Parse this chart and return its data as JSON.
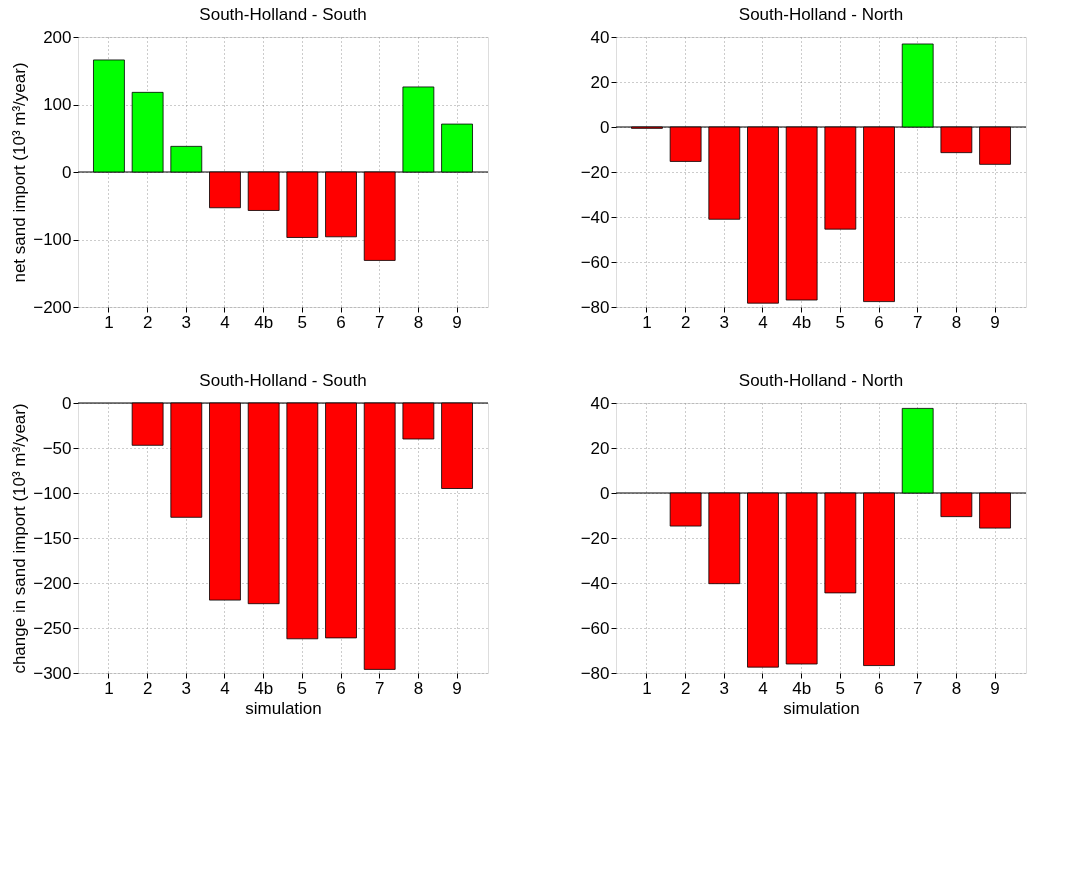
{
  "chart_data": [
    {
      "type": "bar",
      "title": "South-Holland - South",
      "ylabel": "net sand import (10³ m³/year)",
      "categories": [
        "1",
        "2",
        "3",
        "4",
        "4b",
        "5",
        "6",
        "7",
        "8",
        "9"
      ],
      "values": [
        166,
        118,
        38,
        -53,
        -57,
        -97,
        -96,
        -131,
        126,
        71
      ],
      "colors": [
        "#00ff00",
        "#00ff00",
        "#00ff00",
        "#ff0000",
        "#ff0000",
        "#ff0000",
        "#ff0000",
        "#ff0000",
        "#00ff00",
        "#00ff00"
      ],
      "ylim": [
        -200,
        200
      ],
      "yticks": [
        -200,
        -100,
        0,
        100,
        200
      ],
      "grid": true,
      "ref_lines": [
        {
          "axis": "y",
          "value": 0
        }
      ]
    },
    {
      "type": "bar",
      "title": "South-Holland - North",
      "categories": [
        "1",
        "2",
        "3",
        "4",
        "4b",
        "5",
        "6",
        "7",
        "8",
        "9"
      ],
      "values": [
        -0.6,
        -15.3,
        -41,
        -78.3,
        -76.9,
        -45.4,
        -77.6,
        36.9,
        -11.4,
        -16.6
      ],
      "colors": [
        "#ff0000",
        "#ff0000",
        "#ff0000",
        "#ff0000",
        "#ff0000",
        "#ff0000",
        "#ff0000",
        "#00ff00",
        "#ff0000",
        "#ff0000"
      ],
      "ylim": [
        -80,
        40
      ],
      "yticks": [
        -80,
        -60,
        -40,
        -20,
        0,
        20,
        40
      ],
      "grid": true,
      "ref_lines": [
        {
          "axis": "y",
          "value": 0
        }
      ]
    },
    {
      "type": "bar",
      "title": "South-Holland - South",
      "xlabel": "simulation",
      "ylabel": "change in sand import (10³ m³/year)",
      "categories": [
        "1",
        "2",
        "3",
        "4",
        "4b",
        "5",
        "6",
        "7",
        "8",
        "9"
      ],
      "values": [
        null,
        -47,
        -127,
        -219,
        -223,
        -262,
        -261,
        -296,
        -40,
        -95
      ],
      "colors": [
        null,
        "#ff0000",
        "#ff0000",
        "#ff0000",
        "#ff0000",
        "#ff0000",
        "#ff0000",
        "#ff0000",
        "#ff0000",
        "#ff0000"
      ],
      "ylim": [
        -300,
        0
      ],
      "yticks": [
        -300,
        -250,
        -200,
        -150,
        -100,
        -50,
        0
      ],
      "grid": true,
      "ref_lines": [
        {
          "axis": "y",
          "value": 0
        }
      ]
    },
    {
      "type": "bar",
      "title": "South-Holland - North",
      "xlabel": "simulation",
      "categories": [
        "1",
        "2",
        "3",
        "4",
        "4b",
        "5",
        "6",
        "7",
        "8",
        "9"
      ],
      "values": [
        null,
        -14.7,
        -40.3,
        -77.4,
        -76,
        -44.4,
        -76.7,
        37.6,
        -10.5,
        -15.6
      ],
      "colors": [
        null,
        "#ff0000",
        "#ff0000",
        "#ff0000",
        "#ff0000",
        "#ff0000",
        "#ff0000",
        "#00ff00",
        "#ff0000",
        "#ff0000"
      ],
      "ylim": [
        -80,
        40
      ],
      "yticks": [
        -80,
        -60,
        -40,
        -20,
        0,
        20,
        40
      ],
      "grid": true,
      "ref_lines": [
        {
          "axis": "y",
          "value": 0
        }
      ]
    }
  ]
}
